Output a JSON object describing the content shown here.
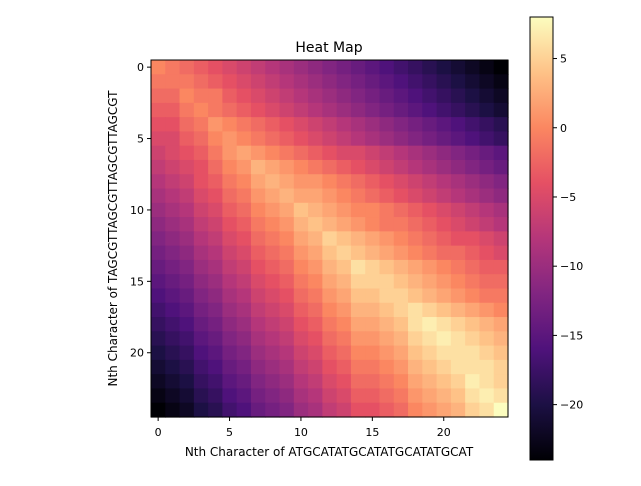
{
  "chart_data": {
    "type": "heatmap",
    "title": "Heat Map",
    "xlabel": "Nth Character of ATGCATATGCATATGCATATGCAT",
    "ylabel": "Nth Character of TAGCGTTAGCGTTAGCGTTAGCGT",
    "rows": 25,
    "cols": 25,
    "x_ticks": [
      0,
      5,
      10,
      15,
      20
    ],
    "y_ticks": [
      0,
      5,
      10,
      15,
      20
    ],
    "colorbar": {
      "colormap": "magma",
      "vmin": -24,
      "vmax": 8,
      "ticks": [
        5,
        0,
        -5,
        -10,
        -15,
        -20
      ]
    },
    "grid": false,
    "values": [
      [
        0,
        -1,
        -2,
        -3,
        -4,
        -5,
        -6,
        -7,
        -8,
        -9,
        -10,
        -11,
        -12,
        -13,
        -14,
        -15,
        -16,
        -17,
        -18,
        -19,
        -20,
        -21,
        -22,
        -23,
        -24
      ],
      [
        -1,
        -1,
        -1,
        -2,
        -3,
        -4,
        -5,
        -6,
        -7,
        -8,
        -9,
        -10,
        -11,
        -12,
        -13,
        -14,
        -15,
        -16,
        -17,
        -18,
        -19,
        -20,
        -21,
        -22,
        -23
      ],
      [
        -2,
        -2,
        0,
        -1,
        -1,
        -3,
        -4,
        -5,
        -6,
        -7,
        -8,
        -9,
        -10,
        -11,
        -12,
        -13,
        -14,
        -15,
        -16,
        -17,
        -18,
        -19,
        -20,
        -21,
        -22
      ],
      [
        -3,
        -3,
        -1,
        0,
        -1,
        -2,
        -3,
        -4,
        -5,
        -6,
        -7,
        -8,
        -9,
        -10,
        -11,
        -12,
        -13,
        -14,
        -15,
        -16,
        -17,
        -18,
        -19,
        -20,
        -21
      ],
      [
        -4,
        -4,
        -2,
        -1,
        1,
        0,
        -1,
        -2,
        -3,
        -4,
        -5,
        -6,
        -7,
        -8,
        -9,
        -10,
        -11,
        -12,
        -13,
        -14,
        -15,
        -16,
        -17,
        -18,
        -19
      ],
      [
        -5,
        -5,
        -3,
        -2,
        0,
        1,
        0,
        -1,
        -2,
        -3,
        -4,
        -5,
        -6,
        -7,
        -8,
        -9,
        -10,
        -11,
        -12,
        -13,
        -14,
        -15,
        -16,
        -17,
        -18
      ],
      [
        -6,
        -5,
        -4,
        -3,
        -1,
        1,
        2,
        1,
        0,
        -1,
        -2,
        -3,
        -4,
        -5,
        -5,
        -6,
        -7,
        -8,
        -9,
        -10,
        -11,
        -12,
        -13,
        -14,
        -15
      ],
      [
        -7,
        -6,
        -5,
        -4,
        -2,
        0,
        1,
        3,
        2,
        1,
        0,
        -1,
        -2,
        -3,
        -4,
        -5,
        -6,
        -7,
        -8,
        -9,
        -10,
        -11,
        -12,
        -13,
        -14
      ],
      [
        -8,
        -7,
        -6,
        -4,
        -3,
        -1,
        0,
        2,
        3,
        2,
        1,
        1,
        0,
        -1,
        -2,
        -3,
        -4,
        -5,
        -6,
        -7,
        -8,
        -9,
        -10,
        -11,
        -12
      ],
      [
        -9,
        -8,
        -7,
        -5,
        -4,
        -2,
        -1,
        1,
        2,
        3,
        2,
        2,
        1,
        0,
        -1,
        -2,
        -3,
        -4,
        -5,
        -6,
        -7,
        -8,
        -9,
        -10,
        -11
      ],
      [
        -10,
        -9,
        -8,
        -6,
        -5,
        -3,
        -2,
        0,
        1,
        2,
        4,
        3,
        2,
        1,
        0,
        0,
        -1,
        -2,
        -3,
        -4,
        -5,
        -6,
        -7,
        -8,
        -9
      ],
      [
        -11,
        -10,
        -9,
        -7,
        -6,
        -4,
        -3,
        -1,
        0,
        1,
        3,
        4,
        3,
        2,
        1,
        0,
        -1,
        -1,
        -2,
        -3,
        -4,
        -5,
        -6,
        -7,
        -8
      ],
      [
        -12,
        -11,
        -10,
        -8,
        -7,
        -5,
        -4,
        -2,
        -1,
        0,
        2,
        3,
        5,
        4,
        3,
        2,
        1,
        0,
        -1,
        -2,
        -3,
        -4,
        -4,
        -5,
        -6
      ],
      [
        -13,
        -12,
        -11,
        -9,
        -8,
        -6,
        -5,
        -3,
        -2,
        -1,
        1,
        2,
        4,
        5,
        4,
        3,
        2,
        1,
        0,
        -1,
        -2,
        -2,
        -3,
        -4,
        -5
      ],
      [
        -14,
        -13,
        -12,
        -10,
        -9,
        -7,
        -6,
        -4,
        -3,
        -2,
        0,
        1,
        3,
        4,
        6,
        5,
        4,
        3,
        2,
        1,
        0,
        -1,
        -2,
        -3,
        -3
      ],
      [
        -15,
        -14,
        -13,
        -11,
        -10,
        -8,
        -7,
        -5,
        -4,
        -3,
        -1,
        0,
        2,
        3,
        5,
        5,
        5,
        4,
        3,
        2,
        1,
        0,
        -1,
        -2,
        -2
      ],
      [
        -16,
        -15,
        -14,
        -12,
        -11,
        -9,
        -8,
        -6,
        -5,
        -4,
        -2,
        -1,
        1,
        2,
        4,
        4,
        5,
        5,
        4,
        3,
        2,
        1,
        0,
        -1,
        -1
      ],
      [
        -17,
        -16,
        -15,
        -13,
        -12,
        -10,
        -9,
        -7,
        -6,
        -5,
        -3,
        -2,
        0,
        1,
        3,
        3,
        4,
        5,
        6,
        5,
        4,
        3,
        2,
        1,
        0
      ],
      [
        -18,
        -17,
        -16,
        -14,
        -13,
        -11,
        -10,
        -8,
        -7,
        -6,
        -4,
        -3,
        -1,
        0,
        2,
        2,
        3,
        4,
        6,
        7,
        6,
        5,
        4,
        3,
        2
      ],
      [
        -19,
        -18,
        -17,
        -15,
        -14,
        -12,
        -11,
        -9,
        -8,
        -7,
        -5,
        -4,
        -2,
        -1,
        1,
        1,
        2,
        3,
        5,
        6,
        7,
        6,
        5,
        4,
        3
      ],
      [
        -20,
        -19,
        -18,
        -16,
        -15,
        -13,
        -12,
        -10,
        -9,
        -8,
        -6,
        -5,
        -3,
        -2,
        0,
        0,
        1,
        2,
        4,
        5,
        6,
        6,
        6,
        5,
        4
      ],
      [
        -21,
        -20,
        -19,
        -17,
        -16,
        -14,
        -13,
        -11,
        -10,
        -9,
        -7,
        -6,
        -4,
        -3,
        -1,
        -1,
        0,
        1,
        3,
        4,
        5,
        6,
        6,
        6,
        5
      ],
      [
        -22,
        -21,
        -20,
        -18,
        -17,
        -15,
        -14,
        -12,
        -11,
        -10,
        -8,
        -7,
        -5,
        -4,
        -2,
        -2,
        -1,
        0,
        2,
        3,
        4,
        5,
        7,
        6,
        5
      ],
      [
        -23,
        -22,
        -21,
        -19,
        -18,
        -16,
        -15,
        -13,
        -12,
        -11,
        -9,
        -8,
        -6,
        -5,
        -3,
        -3,
        -2,
        -1,
        1,
        2,
        3,
        4,
        6,
        7,
        6
      ],
      [
        -24,
        -23,
        -22,
        -20,
        -19,
        -17,
        -16,
        -14,
        -13,
        -12,
        -10,
        -9,
        -7,
        -6,
        -4,
        -4,
        -3,
        -2,
        0,
        1,
        2,
        3,
        5,
        6,
        8
      ]
    ]
  }
}
